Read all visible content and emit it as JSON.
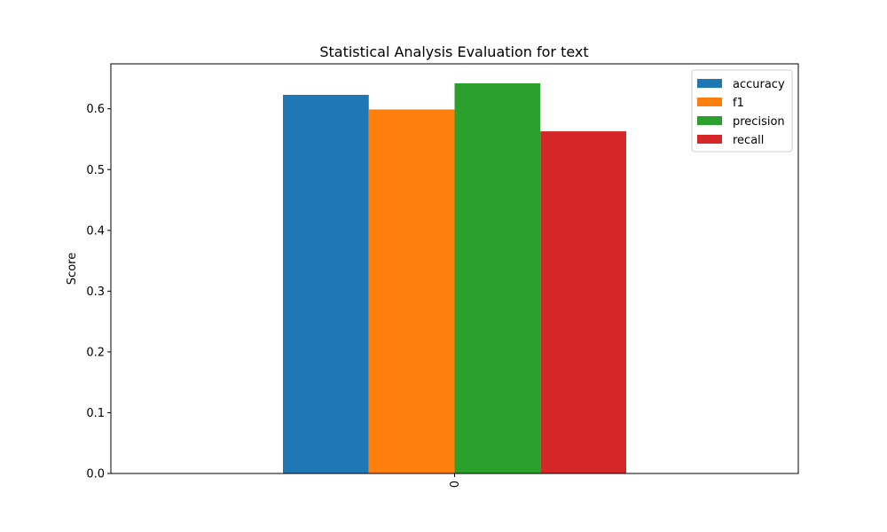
{
  "chart_data": {
    "type": "bar",
    "title": "Statistical Analysis Evaluation for text",
    "xlabel": "",
    "ylabel": "Score",
    "categories": [
      "0"
    ],
    "series": [
      {
        "name": "accuracy",
        "values": [
          0.623
        ],
        "color": "#1f77b4"
      },
      {
        "name": "f1",
        "values": [
          0.599
        ],
        "color": "#ff7f0e"
      },
      {
        "name": "precision",
        "values": [
          0.642
        ],
        "color": "#2ca02c"
      },
      {
        "name": "recall",
        "values": [
          0.563
        ],
        "color": "#d62728"
      }
    ],
    "yticks": [
      "0.0",
      "0.1",
      "0.2",
      "0.3",
      "0.4",
      "0.5",
      "0.6"
    ],
    "ylim": [
      0,
      0.674
    ],
    "grid": false,
    "legend_position": "top-right"
  }
}
